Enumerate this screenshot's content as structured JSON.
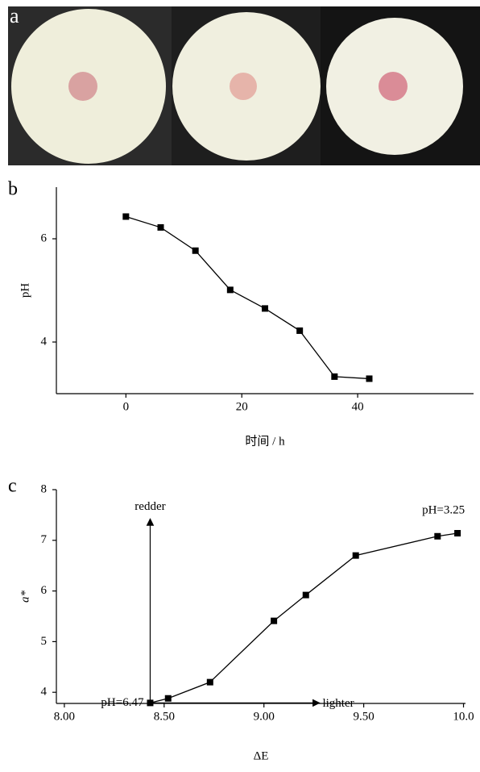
{
  "photo": {
    "panel_label": "a"
  },
  "chart_data": [
    {
      "type": "line",
      "panel_label": "b",
      "x_label": "时间 / h",
      "y_label": "pH",
      "x": [
        0,
        6,
        12,
        18,
        24,
        30,
        36,
        42
      ],
      "values": [
        6.43,
        6.22,
        5.77,
        5.01,
        4.65,
        4.22,
        3.33,
        3.29
      ],
      "color": "#000000",
      "xlim": [
        -12,
        60
      ],
      "ylim": [
        3,
        7
      ],
      "xticks": [
        0,
        20,
        40
      ],
      "yticks": [
        4,
        6
      ]
    },
    {
      "type": "line",
      "panel_label": "c",
      "x_label": "ΔE",
      "y_label": "a*",
      "x": [
        8.43,
        8.52,
        8.73,
        9.05,
        9.21,
        9.46,
        9.87,
        9.97
      ],
      "values": [
        3.79,
        3.88,
        4.2,
        5.41,
        5.92,
        6.7,
        7.08,
        7.14
      ],
      "color": "#000000",
      "xlim": [
        7.96,
        10.01
      ],
      "ylim": [
        3.78,
        8
      ],
      "xticks": [
        {
          "value": 8,
          "label": "8.00"
        },
        {
          "value": 8.5,
          "label": "8.50"
        },
        {
          "value": 9,
          "label": "9.00"
        },
        {
          "value": 9.5,
          "label": "9.50"
        },
        {
          "value": 10,
          "label": "10.0"
        }
      ],
      "yticks": [
        4,
        5,
        6,
        7,
        8
      ],
      "annotations": [
        "pH=6.47",
        "pH=3.25",
        "redder",
        "lighter"
      ]
    }
  ]
}
